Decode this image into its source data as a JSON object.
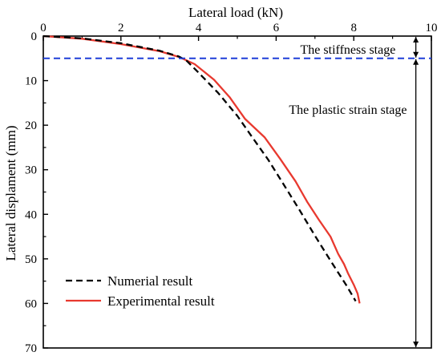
{
  "chart_data": {
    "type": "line",
    "xlabel": "Lateral load (kN)",
    "ylabel": "Lateral displament (mm)",
    "xlim": [
      0,
      10
    ],
    "ylim": [
      0,
      70
    ],
    "x_axis_position": "top",
    "y_axis_inverted": true,
    "x_ticks": [
      "0",
      "2",
      "4",
      "6",
      "8",
      "10"
    ],
    "y_ticks": [
      "0",
      "10",
      "20",
      "30",
      "40",
      "50",
      "60",
      "70"
    ],
    "grid": false,
    "legend_position": "bottom-left",
    "series": [
      {
        "name": "Numerial result",
        "style": "dashed",
        "color": "#000000",
        "x": [
          0,
          1.0,
          2.0,
          3.0,
          3.5,
          3.7,
          4.0,
          4.5,
          5.0,
          5.4,
          5.8,
          6.2,
          6.6,
          7.0,
          7.4,
          7.8,
          8.05
        ],
        "y": [
          0,
          0.5,
          1.6,
          3.3,
          4.6,
          5.6,
          8.2,
          12.7,
          17.9,
          22.9,
          27.8,
          33.4,
          39.0,
          44.8,
          50.4,
          55.8,
          59.5
        ]
      },
      {
        "name": "Experimental result",
        "style": "solid",
        "color": "#e8392f",
        "x": [
          0,
          1.0,
          2.0,
          3.0,
          3.5,
          3.9,
          4.4,
          4.8,
          5.2,
          5.7,
          6.1,
          6.5,
          6.8,
          7.1,
          7.4,
          7.6,
          7.75,
          7.85,
          8.0,
          8.1,
          8.15
        ],
        "y": [
          0,
          0.6,
          1.8,
          3.4,
          4.7,
          6.3,
          9.8,
          13.7,
          18.6,
          22.7,
          27.5,
          32.6,
          37.2,
          41.2,
          45.0,
          48.9,
          51.2,
          53.2,
          55.8,
          57.8,
          60.0
        ]
      }
    ],
    "annotations": [
      {
        "type": "hline",
        "y": 5.0,
        "style": "dashed",
        "color": "#1f3fd8"
      },
      {
        "type": "text",
        "text": "The stiffness stage",
        "x": 7.85,
        "y": 2.9
      },
      {
        "type": "text",
        "text": "The plastic strain stage",
        "x": 7.85,
        "y": 16.4
      },
      {
        "type": "double-arrow",
        "x": 9.6,
        "y_from": 0,
        "y_to": 5.0
      },
      {
        "type": "double-arrow",
        "x": 9.6,
        "y_from": 5.0,
        "y_to": 70
      }
    ]
  }
}
